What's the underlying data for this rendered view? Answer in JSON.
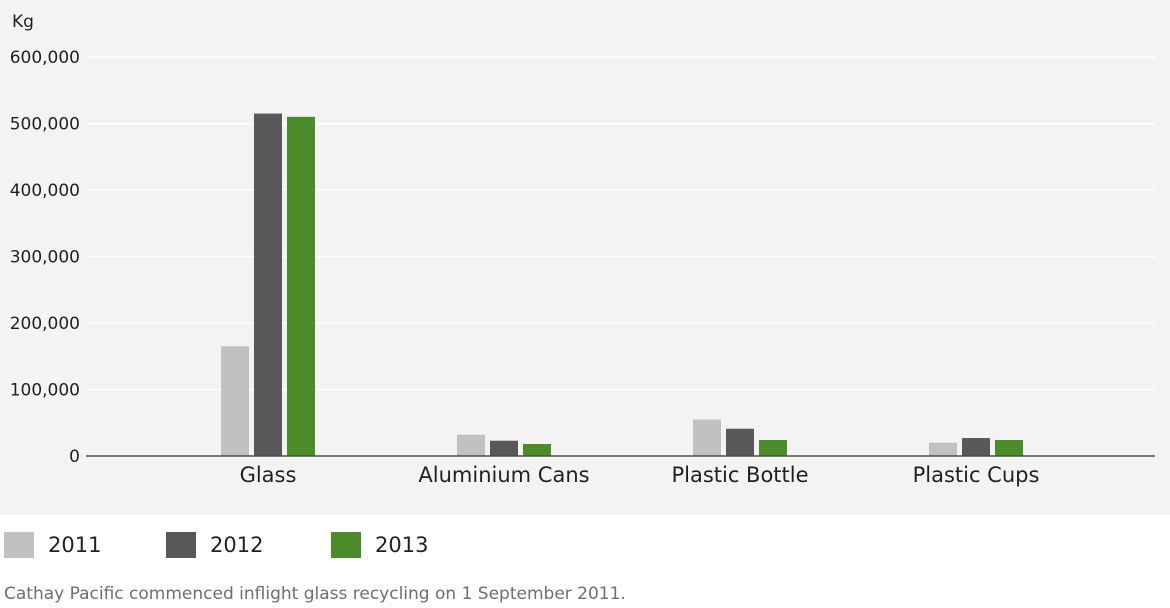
{
  "chart_data": {
    "type": "bar",
    "unit_label": "Kg",
    "categories": [
      "Glass",
      "Aluminium Cans",
      "Plastic Bottle",
      "Plastic Cups"
    ],
    "series": [
      {
        "name": "2011",
        "color": "#c0c1c3",
        "values": [
          165000,
          32000,
          55000,
          20000
        ]
      },
      {
        "name": "2012",
        "color": "#58585a",
        "values": [
          515000,
          23000,
          41000,
          27000
        ]
      },
      {
        "name": "2013",
        "color": "#4a8c2a",
        "values": [
          510000,
          18000,
          24000,
          24000
        ]
      }
    ],
    "yticks": [
      "0",
      "100,000",
      "200,000",
      "300,000",
      "400,000",
      "500,000",
      "600,000"
    ],
    "ylim": [
      0,
      600000
    ],
    "grid": true,
    "legend_position": "bottom-left"
  },
  "footnote": "Cathay Pacific commenced inflight glass recycling on 1 September 2011."
}
